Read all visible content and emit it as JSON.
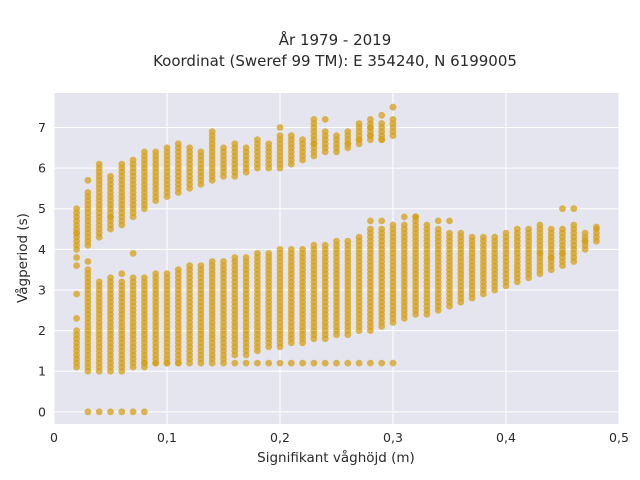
{
  "chart_data": {
    "type": "scatter",
    "title_line1": "År 1979 - 2019",
    "title_line2": "Koordinat (Sweref 99 TM): E 354240, N 6199005",
    "xlabel": "Signifikant våghöjd (m)",
    "ylabel": "Vågperiod (s)",
    "xlim": [
      0,
      0.5
    ],
    "ylim": [
      -0.3,
      7.85
    ],
    "x_ticks": [
      0,
      0.1,
      0.2,
      0.3,
      0.4,
      0.5
    ],
    "x_tick_labels": [
      "0",
      "0,1",
      "0,2",
      "0,3",
      "0,4",
      "0,5"
    ],
    "y_ticks": [
      0,
      1,
      2,
      3,
      4,
      5,
      6,
      7
    ],
    "y_tick_labels": [
      "0",
      "1",
      "2",
      "3",
      "4",
      "5",
      "6",
      "7"
    ],
    "grid": true,
    "marker_color": "#d4a017",
    "plot_bg": "#e5e5ef",
    "column_spacing": 0.01,
    "x_points_start": 0.02,
    "x_points_end": 0.48,
    "upper_band": [
      [
        0.02,
        4.0,
        5.0
      ],
      [
        0.03,
        4.1,
        5.4
      ],
      [
        0.04,
        4.3,
        6.1
      ],
      [
        0.05,
        4.5,
        5.8
      ],
      [
        0.06,
        4.7,
        6.1
      ],
      [
        0.07,
        4.8,
        6.2
      ],
      [
        0.08,
        5.0,
        6.4
      ],
      [
        0.09,
        5.2,
        6.4
      ],
      [
        0.1,
        5.3,
        6.5
      ],
      [
        0.11,
        5.4,
        6.6
      ],
      [
        0.12,
        5.5,
        6.5
      ],
      [
        0.13,
        5.6,
        6.4
      ],
      [
        0.14,
        5.7,
        6.8
      ],
      [
        0.15,
        5.8,
        6.5
      ],
      [
        0.16,
        5.8,
        6.6
      ],
      [
        0.17,
        5.9,
        6.5
      ],
      [
        0.18,
        6.0,
        6.7
      ],
      [
        0.19,
        6.0,
        6.6
      ],
      [
        0.2,
        6.0,
        6.8
      ],
      [
        0.21,
        6.1,
        6.8
      ],
      [
        0.22,
        6.2,
        6.7
      ],
      [
        0.23,
        6.3,
        7.1
      ],
      [
        0.24,
        6.4,
        6.9
      ],
      [
        0.25,
        6.4,
        6.8
      ],
      [
        0.26,
        6.5,
        6.9
      ],
      [
        0.27,
        6.6,
        7.1
      ],
      [
        0.28,
        6.7,
        7.2
      ],
      [
        0.29,
        6.7,
        7.1
      ],
      [
        0.3,
        6.9,
        7.2
      ]
    ],
    "lower_band": [
      [
        0.02,
        1.1,
        2.0
      ],
      [
        0.03,
        1.0,
        3.5
      ],
      [
        0.04,
        1.0,
        3.2
      ],
      [
        0.05,
        1.0,
        3.3
      ],
      [
        0.06,
        1.0,
        3.2
      ],
      [
        0.07,
        1.1,
        3.3
      ],
      [
        0.08,
        1.1,
        3.3
      ],
      [
        0.09,
        1.2,
        3.4
      ],
      [
        0.1,
        1.2,
        3.4
      ],
      [
        0.11,
        1.2,
        3.5
      ],
      [
        0.12,
        1.3,
        3.6
      ],
      [
        0.13,
        1.3,
        3.6
      ],
      [
        0.14,
        1.3,
        3.7
      ],
      [
        0.15,
        1.3,
        3.7
      ],
      [
        0.16,
        1.4,
        3.8
      ],
      [
        0.17,
        1.4,
        3.8
      ],
      [
        0.18,
        1.5,
        3.9
      ],
      [
        0.19,
        1.6,
        3.9
      ],
      [
        0.2,
        1.6,
        4.0
      ],
      [
        0.21,
        1.7,
        4.0
      ],
      [
        0.22,
        1.7,
        4.0
      ],
      [
        0.23,
        1.8,
        4.1
      ],
      [
        0.24,
        1.8,
        4.1
      ],
      [
        0.25,
        1.9,
        4.2
      ],
      [
        0.26,
        1.9,
        4.2
      ],
      [
        0.27,
        2.0,
        4.3
      ],
      [
        0.28,
        2.0,
        4.5
      ],
      [
        0.29,
        2.1,
        4.5
      ],
      [
        0.3,
        2.2,
        4.6
      ],
      [
        0.31,
        2.3,
        4.6
      ],
      [
        0.32,
        2.4,
        4.8
      ],
      [
        0.33,
        2.4,
        4.6
      ],
      [
        0.34,
        2.5,
        4.5
      ],
      [
        0.35,
        2.6,
        4.4
      ],
      [
        0.36,
        2.7,
        4.4
      ],
      [
        0.37,
        2.8,
        4.3
      ],
      [
        0.38,
        2.9,
        4.3
      ],
      [
        0.39,
        3.0,
        4.3
      ],
      [
        0.4,
        3.1,
        4.4
      ],
      [
        0.41,
        3.2,
        4.5
      ],
      [
        0.42,
        3.3,
        4.5
      ],
      [
        0.43,
        3.4,
        4.6
      ],
      [
        0.44,
        3.5,
        4.5
      ],
      [
        0.45,
        3.6,
        4.5
      ],
      [
        0.46,
        3.7,
        4.6
      ],
      [
        0.47,
        4.0,
        4.4
      ],
      [
        0.48,
        4.2,
        4.5
      ]
    ],
    "row_at_1_2": [
      0.08,
      0.3
    ],
    "row_at_0": [
      0.03,
      0.08
    ],
    "outliers": [
      [
        0.02,
        3.6
      ],
      [
        0.02,
        3.8
      ],
      [
        0.02,
        2.9
      ],
      [
        0.02,
        2.3
      ],
      [
        0.02,
        4.4
      ],
      [
        0.03,
        3.7
      ],
      [
        0.03,
        5.7
      ],
      [
        0.05,
        4.8
      ],
      [
        0.06,
        4.6
      ],
      [
        0.07,
        3.9
      ],
      [
        0.06,
        3.4
      ],
      [
        0.14,
        6.9
      ],
      [
        0.2,
        7.0
      ],
      [
        0.23,
        6.6
      ],
      [
        0.23,
        7.2
      ],
      [
        0.24,
        7.2
      ],
      [
        0.26,
        6.6
      ],
      [
        0.27,
        6.7
      ],
      [
        0.28,
        6.8
      ],
      [
        0.28,
        7.0
      ],
      [
        0.29,
        6.7
      ],
      [
        0.29,
        7.3
      ],
      [
        0.3,
        7.5
      ],
      [
        0.3,
        6.8
      ],
      [
        0.32,
        4.8
      ],
      [
        0.34,
        4.7
      ],
      [
        0.35,
        4.7
      ],
      [
        0.31,
        4.8
      ],
      [
        0.28,
        4.7
      ],
      [
        0.29,
        4.7
      ],
      [
        0.45,
        5.0
      ],
      [
        0.46,
        5.0
      ],
      [
        0.47,
        4.2
      ],
      [
        0.48,
        4.55
      ],
      [
        0.43,
        3.9
      ],
      [
        0.44,
        3.8
      ],
      [
        0.45,
        3.9
      ]
    ]
  }
}
